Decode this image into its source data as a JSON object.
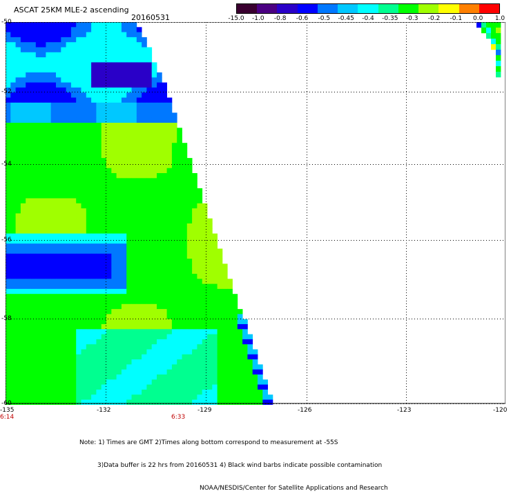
{
  "header": {
    "title": "ASCAT 25KM MLE-2 ascending",
    "date": "20160531"
  },
  "colorbar": {
    "labels": [
      "-15.0",
      "-1.0",
      "-0.8",
      "-0.6",
      "-0.5",
      "-0.45",
      "-0.4",
      "-0.35",
      "-0.3",
      "-0.2",
      "-0.1",
      "0.0",
      "1.0"
    ],
    "colors": [
      "#3a0030",
      "#4b0082",
      "#2a00c8",
      "#0000ff",
      "#0078ff",
      "#00c8ff",
      "#00ffff",
      "#00ff90",
      "#00ff00",
      "#a0ff00",
      "#ffff00",
      "#ff8000",
      "#ff0000"
    ]
  },
  "axes": {
    "lat_labels": [
      "-50",
      "-52",
      "-54",
      "-56",
      "-58",
      "-60"
    ],
    "lon_labels": [
      "-135",
      "-132",
      "-129",
      "-126",
      "-123",
      "-120"
    ],
    "time_labels": [
      "6:14",
      "6:33"
    ]
  },
  "notes": {
    "line1": "Note: 1) Times are GMT 2)Times along bottom correspond to measurement at -55S",
    "line2": "3)Data buffer is 22 hrs from 20160531 4) Black wind barbs indicate possible contamination",
    "line3": "NOAA/NESDIS/Center for Satellite Applications and Research"
  }
}
